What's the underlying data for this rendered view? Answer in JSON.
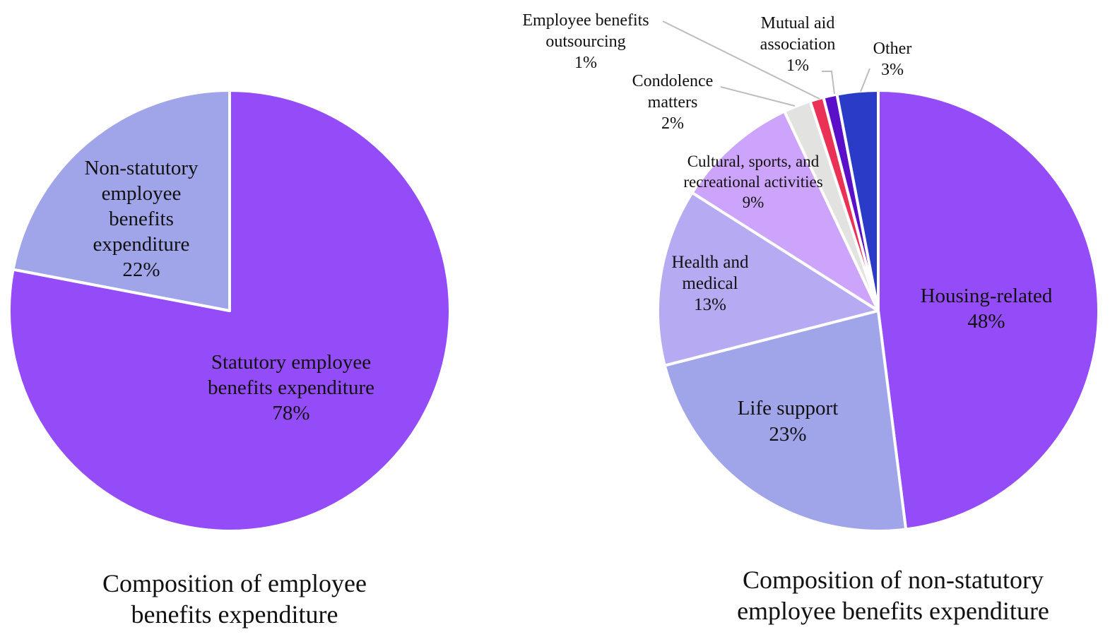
{
  "chart_data": [
    {
      "type": "pie",
      "title": "Composition of employee benefits expenditure",
      "title_lines": [
        "Composition of employee",
        "benefits expenditure"
      ],
      "start": "12 o'clock, clockwise",
      "slices": [
        {
          "name": "Statutory employee benefits expenditure",
          "value": 78,
          "label": "78%",
          "label_lines": [
            "Statutory employee",
            "benefits expenditure",
            "78%"
          ],
          "color": "#944bf8"
        },
        {
          "name": "Non-statutory employee benefits expenditure",
          "value": 22,
          "label": "22%",
          "label_lines": [
            "Non-statutory",
            "employee",
            "benefits",
            "expenditure",
            "22%"
          ],
          "color": "#a0a5ea"
        }
      ]
    },
    {
      "type": "pie",
      "title": "Composition of non-statutory employee benefits expenditure",
      "title_lines": [
        "Composition of non-statutory",
        "employee benefits expenditure"
      ],
      "start": "12 o'clock, clockwise",
      "slices": [
        {
          "name": "Housing-related",
          "value": 48,
          "label": "48%",
          "label_lines": [
            "Housing-related",
            "48%"
          ],
          "color": "#944bf8"
        },
        {
          "name": "Life support",
          "value": 23,
          "label": "23%",
          "label_lines": [
            "Life support",
            "23%"
          ],
          "color": "#a0a5ea"
        },
        {
          "name": "Health and medical",
          "value": 13,
          "label": "13%",
          "label_lines": [
            "Health and",
            "medical",
            "13%"
          ],
          "color": "#b6aaf3"
        },
        {
          "name": "Cultural, sports, and recreational activities",
          "value": 9,
          "label": "9%",
          "label_lines": [
            "Cultural, sports, and",
            "recreational activities",
            "9%"
          ],
          "color": "#cda4fb"
        },
        {
          "name": "Condolence matters",
          "value": 2,
          "label": "2%",
          "label_lines": [
            "Condolence",
            "matters",
            "2%"
          ],
          "color": "#e2e2e0"
        },
        {
          "name": "Employee benefits outsourcing",
          "value": 1,
          "label": "1%",
          "label_lines": [
            "Employee benefits",
            "outsourcing",
            "1%"
          ],
          "color": "#ea3256"
        },
        {
          "name": "Mutual aid association",
          "value": 1,
          "label": "1%",
          "label_lines": [
            "Mutual aid",
            "association",
            "1%"
          ],
          "color": "#5a10c8"
        },
        {
          "name": "Other",
          "value": 3,
          "label": "3%",
          "label_lines": [
            "Other",
            "3%"
          ],
          "color": "#2a3bc7"
        }
      ]
    }
  ]
}
